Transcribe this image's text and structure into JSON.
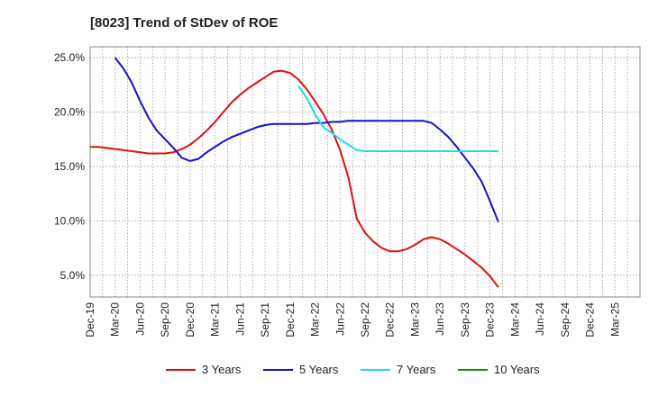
{
  "chart_data": {
    "type": "line",
    "title": "[8023]  Trend of StDev of ROE",
    "xlabel": "",
    "ylabel": "",
    "x_ticks": [
      "Dec-19",
      "Mar-20",
      "Jun-20",
      "Sep-20",
      "Dec-20",
      "Mar-21",
      "Jun-21",
      "Sep-21",
      "Dec-21",
      "Mar-22",
      "Jun-22",
      "Sep-22",
      "Dec-22",
      "Mar-23",
      "Jun-23",
      "Sep-23",
      "Dec-23",
      "Mar-24",
      "Jun-24",
      "Sep-24",
      "Dec-24",
      "Mar-25"
    ],
    "y_ticks": [
      5.0,
      10.0,
      15.0,
      20.0,
      25.0
    ],
    "y_tick_labels": [
      "5.0%",
      "10.0%",
      "15.0%",
      "20.0%",
      "25.0%"
    ],
    "ylim": [
      3.0,
      26.0
    ],
    "grid": true,
    "legend_position": "bottom",
    "series": [
      {
        "name": "3 Years",
        "color": "#dd1111",
        "values": [
          16.8,
          16.8,
          16.7,
          16.6,
          16.5,
          16.4,
          16.3,
          16.2,
          16.2,
          16.2,
          16.3,
          16.6,
          17.0,
          17.6,
          18.3,
          19.1,
          20.0,
          20.9,
          21.6,
          22.2,
          22.7,
          23.2,
          23.7,
          23.8,
          23.6,
          23.0,
          22.1,
          21.0,
          19.8,
          18.4,
          16.5,
          14.0,
          10.2,
          8.9,
          8.1,
          7.5,
          7.2,
          7.2,
          7.4,
          7.8,
          8.3,
          8.5,
          8.3,
          7.9,
          7.4,
          6.9,
          6.3,
          5.7,
          4.9,
          3.9
        ]
      },
      {
        "name": "5 Years",
        "color": "#1111cc",
        "values": [
          null,
          null,
          null,
          25.0,
          24.0,
          22.7,
          21.0,
          19.5,
          18.3,
          17.5,
          16.7,
          15.8,
          15.5,
          15.7,
          16.3,
          16.8,
          17.3,
          17.7,
          18.0,
          18.3,
          18.6,
          18.8,
          18.9,
          18.9,
          18.9,
          18.9,
          18.9,
          19.0,
          19.0,
          19.1,
          19.1,
          19.2,
          19.2,
          19.2,
          19.2,
          19.2,
          19.2,
          19.2,
          19.2,
          19.2,
          19.2,
          19.0,
          18.4,
          17.7,
          16.8,
          15.8,
          14.8,
          13.6,
          11.8,
          9.9
        ]
      },
      {
        "name": "7 Years",
        "color": "#22dddd",
        "values": [
          null,
          null,
          null,
          null,
          null,
          null,
          null,
          null,
          null,
          null,
          null,
          null,
          null,
          null,
          null,
          null,
          null,
          null,
          null,
          null,
          null,
          null,
          null,
          null,
          null,
          22.4,
          21.3,
          19.8,
          18.6,
          18.1,
          17.5,
          17.0,
          16.5,
          16.4,
          16.4,
          16.4,
          16.4,
          16.4,
          16.4,
          16.4,
          16.4,
          16.4,
          16.4,
          16.4,
          16.4,
          16.4,
          16.4,
          16.4,
          16.4,
          16.4
        ]
      },
      {
        "name": "10 Years",
        "color": "#228822",
        "values": []
      }
    ]
  }
}
